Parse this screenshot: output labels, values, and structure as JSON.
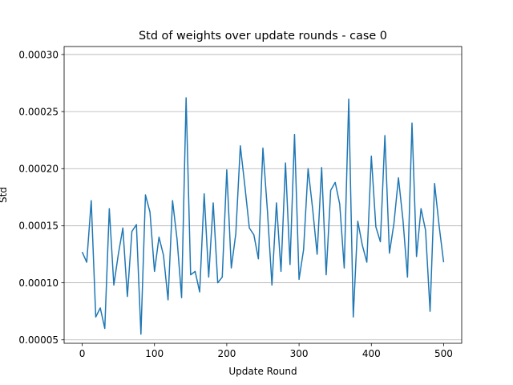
{
  "chart_data": {
    "type": "line",
    "title": "Std of weights over update rounds - case 0",
    "xlabel": "Update Round",
    "ylabel": "Std",
    "xlim": [
      -25,
      525
    ],
    "ylim": [
      4.7e-05,
      0.000307
    ],
    "grid": "horizontal",
    "x_ticks": [
      0,
      100,
      200,
      300,
      400,
      500
    ],
    "x_tick_labels": [
      "0",
      "100",
      "200",
      "300",
      "400",
      "500"
    ],
    "y_ticks": [
      5e-05,
      0.0001,
      0.00015,
      0.0002,
      0.00025,
      0.0003
    ],
    "y_tick_labels": [
      "0.00005",
      "0.00010",
      "0.00015",
      "0.00020",
      "0.00025",
      "0.00030"
    ],
    "series_color": "#1f77b4",
    "series": [
      {
        "values": [
          0.000127,
          0.000118,
          0.000172,
          7e-05,
          7.8e-05,
          6e-05,
          0.000165,
          9.8e-05,
          0.000125,
          0.000148,
          8.8e-05,
          0.000145,
          0.000151,
          5.5e-05,
          0.000177,
          0.000162,
          0.00011,
          0.00014,
          0.000124,
          8.5e-05,
          0.000172,
          0.000138,
          8.7e-05,
          0.000262,
          0.000107,
          0.00011,
          9.2e-05,
          0.000178,
          0.000105,
          0.00017,
          0.0001,
          0.000105,
          0.000199,
          0.000113,
          0.000143,
          0.00022,
          0.000185,
          0.000148,
          0.000142,
          0.000121,
          0.000218,
          0.000163,
          9.8e-05,
          0.00017,
          0.00011,
          0.000205,
          0.000116,
          0.00023,
          0.000103,
          0.000129,
          0.0002,
          0.000165,
          0.000125,
          0.000201,
          0.000107,
          0.000181,
          0.000188,
          0.000169,
          0.000113,
          0.000261,
          7e-05,
          0.000154,
          0.000133,
          0.000118,
          0.000211,
          0.000149,
          0.000136,
          0.000229,
          0.000126,
          0.000152,
          0.000192,
          0.000155,
          0.000105,
          0.00024,
          0.000123,
          0.000165,
          0.000146,
          7.5e-05,
          0.000187,
          0.00015,
          0.000118
        ]
      }
    ]
  }
}
